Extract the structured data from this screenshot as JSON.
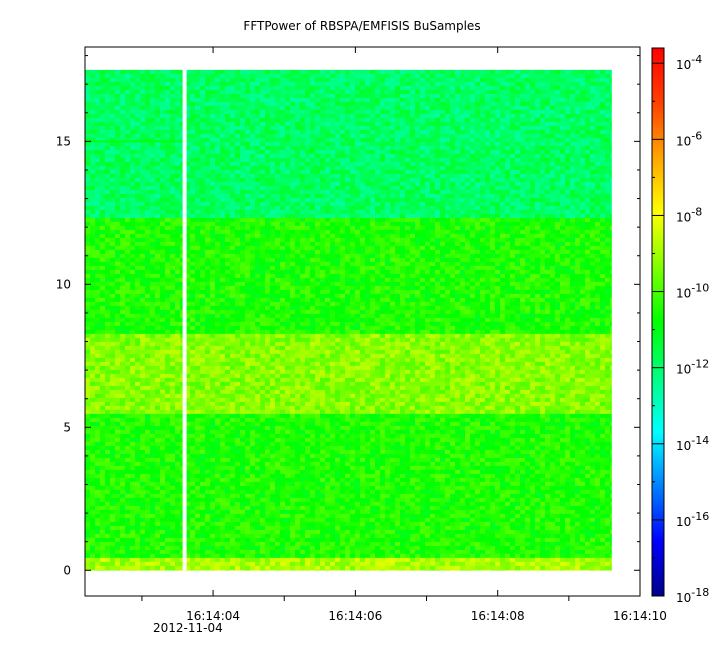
{
  "chart_data": {
    "type": "heatmap",
    "title": "FFTPower of RBSPA/EMFISIS  BuSamples",
    "xlabel": "",
    "ylabel": "",
    "x_axis": {
      "kind": "time",
      "ticks": [
        "16:14:04",
        "16:14:06",
        "16:14:08",
        "16:14:10"
      ],
      "date_label": "2012-11-04",
      "range": [
        "16:14:02.20",
        "16:14:10.00"
      ],
      "data_end": "16:14:09.60",
      "gap_at": "16:14:03.60"
    },
    "y_axis": {
      "ticks": [
        "0",
        "5",
        "10",
        "15"
      ],
      "range": [
        -0.9,
        18.3
      ],
      "data_range": [
        0,
        17.5
      ]
    },
    "colorbar": {
      "scale": "log",
      "range_exponents": [
        -18,
        -3.6
      ],
      "tick_labels": [
        {
          "base": "10",
          "exp": "-4"
        },
        {
          "base": "10",
          "exp": "-6"
        },
        {
          "base": "10",
          "exp": "-8"
        },
        {
          "base": "10",
          "exp": "-10"
        },
        {
          "base": "10",
          "exp": "-12"
        },
        {
          "base": "10",
          "exp": "-14"
        },
        {
          "base": "10",
          "exp": "-16"
        },
        {
          "base": "10",
          "exp": "-18"
        }
      ],
      "colormap": [
        "#00008b",
        "#0000ff",
        "#0080ff",
        "#00ffff",
        "#00ff80",
        "#00ff00",
        "#80ff00",
        "#ffff00",
        "#ffa500",
        "#ff4000",
        "#ff0000"
      ]
    },
    "bands": [
      {
        "y_from": 0.0,
        "y_to": 0.5,
        "log_power": -8.9
      },
      {
        "y_from": 0.5,
        "y_to": 5.5,
        "log_power": -10.5
      },
      {
        "y_from": 5.5,
        "y_to": 8.2,
        "log_power": -9.3
      },
      {
        "y_from": 8.2,
        "y_to": 12.3,
        "log_power": -10.5
      },
      {
        "y_from": 12.3,
        "y_to": 17.5,
        "log_power": -11.9
      }
    ],
    "features": [
      {
        "y": 15.0,
        "x_to": "16:14:03.60",
        "log_power": -11.0
      }
    ]
  }
}
